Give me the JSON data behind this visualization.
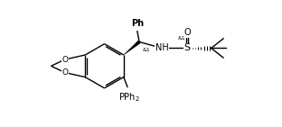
{
  "bg_color": "#ffffff",
  "line_color": "#000000",
  "lw": 1.0,
  "fs": 6.5,
  "xlim": [
    0,
    10.5
  ],
  "ylim": [
    0.5,
    5.5
  ]
}
